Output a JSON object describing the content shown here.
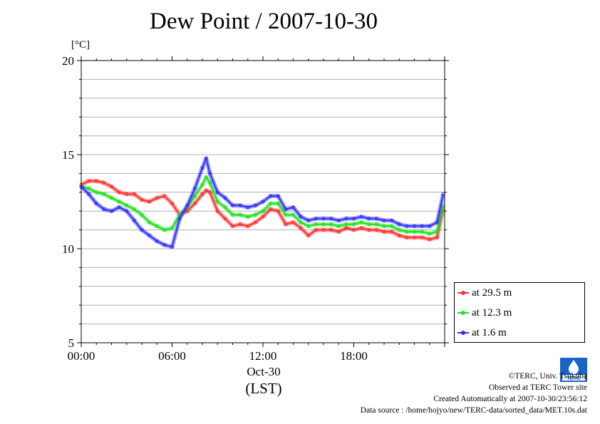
{
  "title": "Dew Point / 2007-10-30",
  "unit_label": "[°C]",
  "date_label": "Oct-30",
  "timezone_label": "(LST)",
  "chart_data": {
    "type": "line",
    "title": "Dew Point / 2007-10-30",
    "xlabel": "(LST)",
    "ylabel": "[°C]",
    "xlim": [
      0,
      24
    ],
    "ylim": [
      5,
      20
    ],
    "x_ticks": [
      {
        "value": 0,
        "label": "00:00"
      },
      {
        "value": 6,
        "label": "06:00"
      },
      {
        "value": 12,
        "label": "12:00"
      },
      {
        "value": 18,
        "label": "18:00"
      }
    ],
    "y_ticks": [
      {
        "value": 5,
        "label": "5"
      },
      {
        "value": 10,
        "label": "10"
      },
      {
        "value": 15,
        "label": "15"
      },
      {
        "value": 20,
        "label": "20"
      }
    ],
    "grid": "horizontal-minor",
    "legend_position": "bottom-right",
    "x": [
      0,
      0.5,
      1,
      1.5,
      2,
      2.5,
      3,
      3.5,
      4,
      4.5,
      5,
      5.5,
      6,
      6.5,
      7,
      7.5,
      8,
      8.25,
      8.5,
      9,
      9.5,
      10,
      10.5,
      11,
      11.5,
      12,
      12.5,
      13,
      13.5,
      14,
      14.5,
      15,
      15.5,
      16,
      16.5,
      17,
      17.5,
      18,
      18.5,
      19,
      19.5,
      20,
      20.5,
      21,
      21.5,
      22,
      22.5,
      23,
      23.5,
      23.9
    ],
    "series": [
      {
        "name": "at 29.5 m",
        "color": "#ff3030",
        "values": [
          13.4,
          13.6,
          13.6,
          13.5,
          13.3,
          13.0,
          12.9,
          12.9,
          12.6,
          12.5,
          12.7,
          12.8,
          12.4,
          11.8,
          12.0,
          12.4,
          12.9,
          13.1,
          13.0,
          12.0,
          11.6,
          11.2,
          11.3,
          11.2,
          11.4,
          11.7,
          12.1,
          12.0,
          11.3,
          11.4,
          11.1,
          10.7,
          11.0,
          11.0,
          11.0,
          10.9,
          11.1,
          11.0,
          11.1,
          11.0,
          11.0,
          10.9,
          10.9,
          10.7,
          10.6,
          10.6,
          10.6,
          10.5,
          10.6,
          12.1
        ]
      },
      {
        "name": "at 12.3 m",
        "color": "#20e020",
        "values": [
          13.3,
          13.2,
          13.0,
          12.9,
          12.7,
          12.5,
          12.3,
          12.1,
          11.8,
          11.4,
          11.2,
          11.0,
          11.1,
          11.8,
          12.2,
          12.8,
          13.4,
          13.8,
          13.5,
          12.5,
          12.2,
          11.8,
          11.8,
          11.7,
          11.8,
          12.0,
          12.4,
          12.4,
          11.8,
          11.8,
          11.4,
          11.2,
          11.3,
          11.3,
          11.3,
          11.2,
          11.3,
          11.3,
          11.4,
          11.3,
          11.3,
          11.2,
          11.2,
          11.0,
          10.9,
          10.9,
          10.9,
          10.8,
          10.9,
          12.3
        ]
      },
      {
        "name": "at 1.6 m",
        "color": "#3030ff",
        "values": [
          13.3,
          12.9,
          12.4,
          12.1,
          12.0,
          12.2,
          12.0,
          11.5,
          11.0,
          10.7,
          10.4,
          10.2,
          10.1,
          11.6,
          12.3,
          13.2,
          14.3,
          14.8,
          14.0,
          13.0,
          12.7,
          12.3,
          12.3,
          12.2,
          12.3,
          12.5,
          12.8,
          12.8,
          12.1,
          12.2,
          11.7,
          11.5,
          11.6,
          11.6,
          11.6,
          11.5,
          11.6,
          11.6,
          11.7,
          11.6,
          11.6,
          11.5,
          11.5,
          11.3,
          11.2,
          11.2,
          11.2,
          11.2,
          11.4,
          12.9
        ]
      }
    ]
  },
  "legend": {
    "items": [
      {
        "label": "at 29.5 m",
        "color": "#ff3030"
      },
      {
        "label": "at 12.3 m",
        "color": "#20e020"
      },
      {
        "label": "at 1.6 m",
        "color": "#3030ff"
      }
    ]
  },
  "credits": {
    "copyright": "©TERC, Univ. Tsukuba",
    "observed": "Observed at TERC Tower site",
    "created": "Created Automatically at 2007-10-30/23:56:12",
    "source": "Data source : /home/hojyo/new/TERC-data/sorted_data/MET.10s.dat"
  },
  "logo": {
    "icon": "terc-logo-icon",
    "text": "TERC",
    "color": "#1a64c8"
  }
}
